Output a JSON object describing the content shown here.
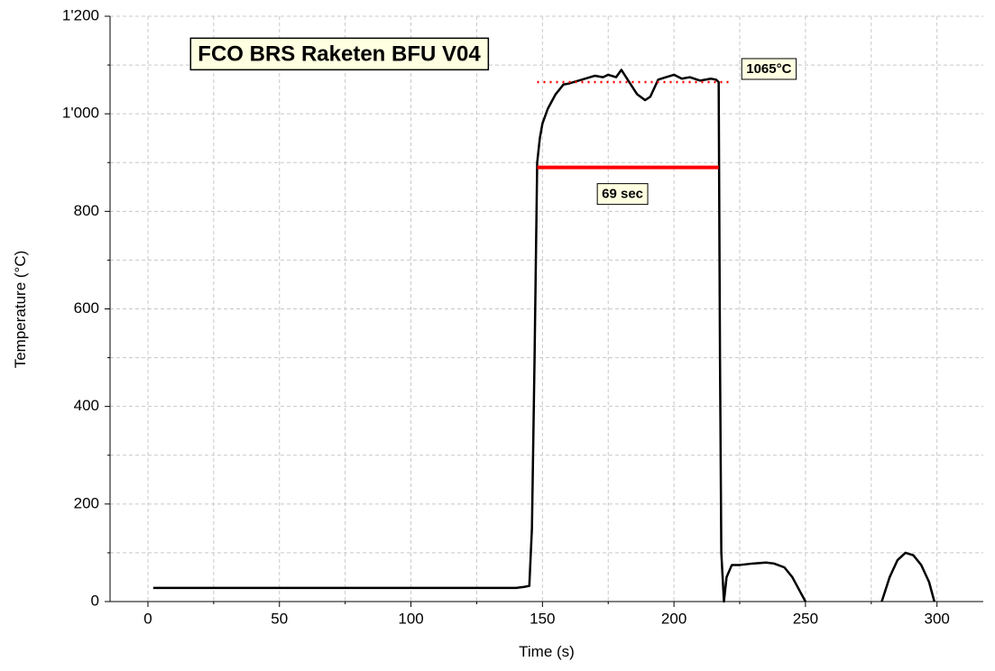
{
  "chart_data": {
    "type": "line",
    "title": "FCO BRS Raketen BFU V04",
    "xlabel": "Time (s)",
    "ylabel": "Temperature (°C)",
    "x": [
      2,
      20,
      40,
      60,
      80,
      100,
      120,
      140,
      143,
      145,
      146,
      147,
      148,
      149,
      150,
      152,
      155,
      158,
      160,
      165,
      170,
      173,
      175,
      178,
      180,
      183,
      186,
      189,
      191,
      194,
      197,
      200,
      203,
      206,
      210,
      214,
      216,
      217,
      217.5,
      218,
      219,
      220,
      222,
      225,
      230,
      235,
      238,
      242,
      245,
      248,
      250,
      265,
      279,
      282,
      285,
      288,
      291,
      294,
      297,
      299
    ],
    "series": [
      {
        "name": "Temperature",
        "color": "#000000",
        "values": [
          28,
          28,
          28,
          28,
          28,
          28,
          28,
          28,
          30,
          32,
          150,
          500,
          900,
          950,
          980,
          1010,
          1040,
          1060,
          1062,
          1070,
          1078,
          1075,
          1080,
          1075,
          1090,
          1065,
          1040,
          1028,
          1035,
          1070,
          1075,
          1080,
          1072,
          1075,
          1068,
          1072,
          1070,
          1065,
          500,
          100,
          0,
          50,
          75,
          75,
          78,
          80,
          78,
          70,
          50,
          20,
          0,
          null,
          0,
          50,
          85,
          100,
          95,
          75,
          40,
          0
        ]
      }
    ],
    "xlim": [
      -14.4,
      317.6
    ],
    "ylim": [
      0,
      1200
    ],
    "xticks": [
      0,
      50,
      100,
      150,
      200,
      250,
      300
    ],
    "yticks": [
      0,
      200,
      400,
      600,
      800,
      {
        "value": 1000,
        "label": "1'000"
      },
      {
        "value": 1200,
        "label": "1'200"
      }
    ],
    "minor_xticks": [
      25,
      75,
      125,
      175,
      225,
      275
    ],
    "minor_yticks": [
      100,
      300,
      500,
      700,
      900,
      1100
    ],
    "grid": true,
    "reference_lines": [
      {
        "y": 1065,
        "x": [
          148,
          221
        ],
        "color": "#ff0000",
        "style": "dotted",
        "label": "1065°C"
      },
      {
        "y": 890,
        "x": [
          148,
          217
        ],
        "color": "#ff0000",
        "style": "solid",
        "label": "69 sec"
      }
    ]
  }
}
